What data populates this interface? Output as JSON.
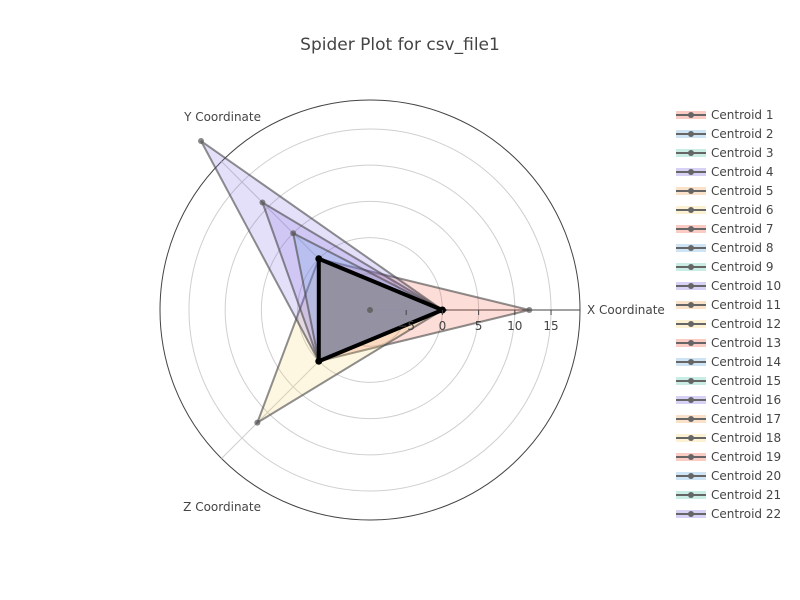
{
  "chart_data": {
    "type": "radar",
    "title": "Spider Plot for csv_file1",
    "axes": [
      "X Coordinate",
      "Y Coordinate",
      "Z Coordinate"
    ],
    "radial_range": [
      -10,
      19
    ],
    "radial_ticks": [
      -5,
      0,
      5,
      10,
      15
    ],
    "legend_position": "right",
    "series": [
      {
        "name": "Centroid 1",
        "values": [
          12,
          0,
          0
        ],
        "color": "#ef553b"
      },
      {
        "name": "Centroid 2",
        "values": [
          0,
          0,
          0
        ],
        "color": "#5da5da"
      },
      {
        "name": "Centroid 3",
        "values": [
          0,
          0,
          0
        ],
        "color": "#4dbfa8"
      },
      {
        "name": "Centroid 4",
        "values": [
          0,
          0,
          0
        ],
        "color": "#7f66e0"
      },
      {
        "name": "Centroid 5",
        "values": [
          0,
          0,
          0
        ],
        "color": "#f0a050"
      },
      {
        "name": "Centroid 6",
        "values": [
          0,
          0,
          12
        ],
        "color": "#f5d06a"
      },
      {
        "name": "Centroid 7",
        "values": [
          0,
          0,
          0
        ],
        "color": "#ef553b"
      },
      {
        "name": "Centroid 8",
        "values": [
          0,
          0,
          0
        ],
        "color": "#5da5da"
      },
      {
        "name": "Centroid 9",
        "values": [
          0,
          0,
          0
        ],
        "color": "#4dbfa8"
      },
      {
        "name": "Centroid 10",
        "values": [
          0,
          23,
          0
        ],
        "color": "#7f66e0"
      },
      {
        "name": "Centroid 11",
        "values": [
          0,
          0,
          0
        ],
        "color": "#f0a050"
      },
      {
        "name": "Centroid 12",
        "values": [
          0,
          0,
          0
        ],
        "color": "#f5d06a"
      },
      {
        "name": "Centroid 13",
        "values": [
          0,
          0,
          0
        ],
        "color": "#ef553b"
      },
      {
        "name": "Centroid 14",
        "values": [
          0,
          0,
          0
        ],
        "color": "#5da5da"
      },
      {
        "name": "Centroid 15",
        "values": [
          0,
          0,
          0
        ],
        "color": "#4dbfa8"
      },
      {
        "name": "Centroid 16",
        "values": [
          0,
          11,
          0
        ],
        "color": "#7f66e0"
      },
      {
        "name": "Centroid 17",
        "values": [
          0,
          0,
          0
        ],
        "color": "#f0a050"
      },
      {
        "name": "Centroid 18",
        "values": [
          0,
          0,
          0
        ],
        "color": "#f5d06a"
      },
      {
        "name": "Centroid 19",
        "values": [
          0,
          0,
          0
        ],
        "color": "#ef553b"
      },
      {
        "name": "Centroid 20",
        "values": [
          0,
          5,
          0
        ],
        "color": "#5da5da"
      },
      {
        "name": "Centroid 21",
        "values": [
          0,
          0,
          0
        ],
        "color": "#4dbfa8"
      },
      {
        "name": "Centroid 22",
        "values": [
          0,
          0,
          0
        ],
        "color": "#7f66e0"
      }
    ]
  }
}
